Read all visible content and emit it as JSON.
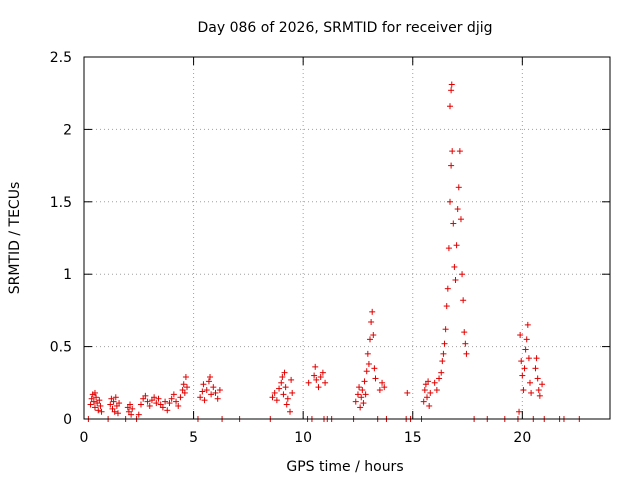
{
  "chart_data": {
    "type": "scatter",
    "title": "Day 086 of 2026, SRMTID for receiver djig",
    "xlabel": "GPS time / hours",
    "ylabel": "SRMTID / TECUs",
    "xlim": [
      0,
      24
    ],
    "ylim": [
      0,
      2.5
    ],
    "xticks": [
      0,
      5,
      10,
      15,
      20
    ],
    "xtick_labels": [
      "0",
      "5",
      "10",
      "15",
      "20"
    ],
    "yticks": [
      0,
      0.5,
      1,
      1.5,
      2,
      2.5
    ],
    "ytick_labels": [
      "0",
      "0.5",
      "1",
      "1.5",
      "2",
      "2.5"
    ],
    "grid": true,
    "marker": "+",
    "color": "#e00000",
    "series": [
      {
        "name": "SRMTID",
        "points": [
          [
            0.2,
            0.0
          ],
          [
            0.3,
            0.1
          ],
          [
            0.35,
            0.14
          ],
          [
            0.4,
            0.17
          ],
          [
            0.45,
            0.12
          ],
          [
            0.5,
            0.18
          ],
          [
            0.5,
            0.08
          ],
          [
            0.55,
            0.15
          ],
          [
            0.6,
            0.11
          ],
          [
            0.65,
            0.06
          ],
          [
            0.7,
            0.13
          ],
          [
            0.75,
            0.09
          ],
          [
            0.8,
            0.05
          ],
          [
            1.1,
            0.0
          ],
          [
            1.2,
            0.1
          ],
          [
            1.25,
            0.14
          ],
          [
            1.3,
            0.07
          ],
          [
            1.35,
            0.12
          ],
          [
            1.4,
            0.05
          ],
          [
            1.45,
            0.15
          ],
          [
            1.5,
            0.09
          ],
          [
            1.55,
            0.04
          ],
          [
            1.6,
            0.11
          ],
          [
            1.9,
            0.0
          ],
          [
            2.0,
            0.08
          ],
          [
            2.05,
            0.05
          ],
          [
            2.1,
            0.1
          ],
          [
            2.15,
            0.03
          ],
          [
            2.2,
            0.07
          ],
          [
            2.4,
            0.0
          ],
          [
            2.5,
            0.03
          ],
          [
            2.6,
            0.1
          ],
          [
            2.7,
            0.14
          ],
          [
            2.8,
            0.16
          ],
          [
            2.9,
            0.12
          ],
          [
            3.0,
            0.09
          ],
          [
            3.1,
            0.13
          ],
          [
            3.2,
            0.15
          ],
          [
            3.3,
            0.11
          ],
          [
            3.4,
            0.14
          ],
          [
            3.5,
            0.1
          ],
          [
            3.6,
            0.08
          ],
          [
            3.7,
            0.12
          ],
          [
            3.8,
            0.06
          ],
          [
            3.9,
            0.11
          ],
          [
            4.0,
            0.14
          ],
          [
            4.1,
            0.17
          ],
          [
            4.2,
            0.12
          ],
          [
            4.3,
            0.09
          ],
          [
            4.4,
            0.15
          ],
          [
            4.5,
            0.2
          ],
          [
            4.55,
            0.24
          ],
          [
            4.6,
            0.18
          ],
          [
            4.65,
            0.29
          ],
          [
            4.7,
            0.22
          ],
          [
            5.2,
            0.0
          ],
          [
            5.3,
            0.15
          ],
          [
            5.4,
            0.19
          ],
          [
            5.45,
            0.24
          ],
          [
            5.5,
            0.13
          ],
          [
            5.6,
            0.2
          ],
          [
            5.7,
            0.26
          ],
          [
            5.75,
            0.29
          ],
          [
            5.8,
            0.17
          ],
          [
            5.9,
            0.22
          ],
          [
            6.0,
            0.18
          ],
          [
            6.1,
            0.14
          ],
          [
            6.2,
            0.2
          ],
          [
            6.3,
            0.0
          ],
          [
            7.1,
            0.0
          ],
          [
            8.5,
            0.0
          ],
          [
            8.6,
            0.15
          ],
          [
            8.7,
            0.18
          ],
          [
            8.8,
            0.13
          ],
          [
            8.9,
            0.21
          ],
          [
            9.0,
            0.25
          ],
          [
            9.05,
            0.29
          ],
          [
            9.1,
            0.17
          ],
          [
            9.15,
            0.32
          ],
          [
            9.2,
            0.22
          ],
          [
            9.25,
            0.1
          ],
          [
            9.3,
            0.14
          ],
          [
            9.4,
            0.05
          ],
          [
            9.45,
            0.27
          ],
          [
            9.5,
            0.18
          ],
          [
            10.2,
            0.0
          ],
          [
            10.25,
            0.25
          ],
          [
            10.4,
            0.0
          ],
          [
            10.5,
            0.3
          ],
          [
            10.55,
            0.36
          ],
          [
            10.6,
            0.27
          ],
          [
            10.7,
            0.22
          ],
          [
            10.8,
            0.29
          ],
          [
            10.9,
            0.32
          ],
          [
            10.95,
            0.0
          ],
          [
            11.0,
            0.25
          ],
          [
            11.1,
            0.0
          ],
          [
            11.3,
            0.0
          ],
          [
            12.3,
            0.0
          ],
          [
            12.4,
            0.12
          ],
          [
            12.5,
            0.17
          ],
          [
            12.55,
            0.22
          ],
          [
            12.6,
            0.08
          ],
          [
            12.65,
            0.15
          ],
          [
            12.7,
            0.2
          ],
          [
            12.75,
            0.11
          ],
          [
            12.8,
            0.26
          ],
          [
            12.85,
            0.17
          ],
          [
            12.9,
            0.33
          ],
          [
            12.95,
            0.45
          ],
          [
            13.0,
            0.38
          ],
          [
            13.05,
            0.55
          ],
          [
            13.1,
            0.67
          ],
          [
            13.15,
            0.74
          ],
          [
            13.2,
            0.58
          ],
          [
            13.25,
            0.35
          ],
          [
            13.3,
            0.28
          ],
          [
            13.4,
            0.0
          ],
          [
            13.5,
            0.2
          ],
          [
            13.6,
            0.25
          ],
          [
            13.7,
            0.22
          ],
          [
            13.8,
            0.0
          ],
          [
            14.7,
            0.0
          ],
          [
            14.75,
            0.18
          ],
          [
            14.9,
            0.0
          ],
          [
            15.4,
            0.0
          ],
          [
            15.5,
            0.12
          ],
          [
            15.55,
            0.2
          ],
          [
            15.6,
            0.24
          ],
          [
            15.65,
            0.15
          ],
          [
            15.7,
            0.26
          ],
          [
            15.75,
            0.09
          ],
          [
            15.8,
            0.18
          ],
          [
            16.0,
            0.25
          ],
          [
            16.1,
            0.2
          ],
          [
            16.2,
            0.28
          ],
          [
            16.3,
            0.32
          ],
          [
            16.35,
            0.4
          ],
          [
            16.4,
            0.45
          ],
          [
            16.45,
            0.52
          ],
          [
            16.5,
            0.62
          ],
          [
            16.55,
            0.78
          ],
          [
            16.6,
            0.9
          ],
          [
            16.65,
            1.18
          ],
          [
            16.7,
            1.5
          ],
          [
            16.75,
            1.75
          ],
          [
            16.7,
            2.16
          ],
          [
            16.75,
            2.27
          ],
          [
            16.78,
            2.31
          ],
          [
            16.8,
            1.85
          ],
          [
            16.85,
            1.35
          ],
          [
            16.9,
            1.05
          ],
          [
            16.95,
            0.96
          ],
          [
            17.0,
            1.2
          ],
          [
            17.05,
            1.45
          ],
          [
            17.1,
            1.6
          ],
          [
            17.15,
            1.85
          ],
          [
            17.2,
            1.38
          ],
          [
            17.25,
            1.0
          ],
          [
            17.3,
            0.82
          ],
          [
            17.35,
            0.6
          ],
          [
            17.4,
            0.52
          ],
          [
            17.45,
            0.45
          ],
          [
            17.8,
            0.0
          ],
          [
            18.4,
            0.0
          ],
          [
            19.2,
            0.0
          ],
          [
            19.8,
            0.0
          ],
          [
            19.85,
            0.05
          ],
          [
            19.9,
            0.58
          ],
          [
            19.95,
            0.4
          ],
          [
            20.0,
            0.3
          ],
          [
            20.05,
            0.2
          ],
          [
            20.1,
            0.35
          ],
          [
            20.15,
            0.48
          ],
          [
            20.2,
            0.55
          ],
          [
            20.25,
            0.65
          ],
          [
            20.3,
            0.42
          ],
          [
            20.35,
            0.25
          ],
          [
            20.4,
            0.18
          ],
          [
            20.5,
            0.0
          ],
          [
            20.6,
            0.35
          ],
          [
            20.65,
            0.42
          ],
          [
            20.7,
            0.28
          ],
          [
            20.75,
            0.2
          ],
          [
            20.8,
            0.16
          ],
          [
            20.9,
            0.24
          ],
          [
            21.0,
            0.0
          ],
          [
            21.7,
            0.0
          ],
          [
            21.9,
            0.0
          ],
          [
            22.6,
            0.0
          ]
        ]
      }
    ]
  }
}
